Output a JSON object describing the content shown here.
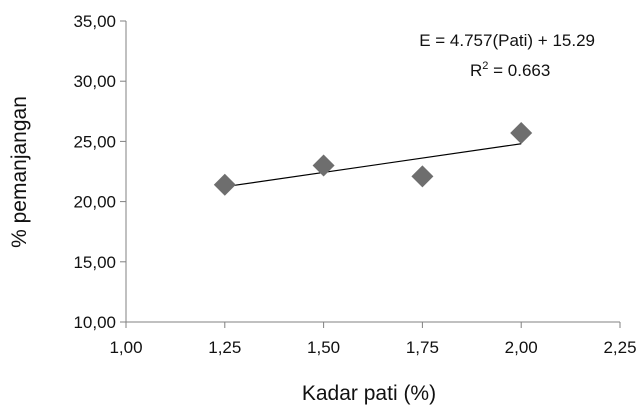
{
  "chart_data": {
    "type": "scatter",
    "xlabel": "Kadar pati (%)",
    "ylabel": "% pemanjangan",
    "xlim": [
      1.0,
      2.25
    ],
    "ylim": [
      10.0,
      35.0
    ],
    "x_ticks": [
      1.0,
      1.25,
      1.5,
      1.75,
      2.0,
      2.25
    ],
    "y_ticks": [
      10.0,
      15.0,
      20.0,
      25.0,
      30.0,
      35.0
    ],
    "x_tick_labels": [
      "1,00",
      "1,25",
      "1,50",
      "1,75",
      "2,00",
      "2,25"
    ],
    "y_tick_labels": [
      "10,00",
      "15,00",
      "20,00",
      "25,00",
      "30,00",
      "35,00"
    ],
    "series": [
      {
        "x": [
          1.25,
          1.5,
          1.75,
          2.0
        ],
        "y": [
          21.4,
          23.0,
          22.1,
          25.7
        ]
      }
    ],
    "trendline": {
      "slope": 4.757,
      "intercept": 15.29,
      "r2": 0.663
    },
    "annotations": {
      "equation": "E = 4.757(Pati) + 15.29",
      "r2_label": "R",
      "r2_sup": "2",
      "r2_value": " = 0.663"
    },
    "colors": {
      "marker": "#6e6e6e",
      "line": "#000000",
      "axis": "#808080"
    },
    "grid": false,
    "legend": "none"
  }
}
